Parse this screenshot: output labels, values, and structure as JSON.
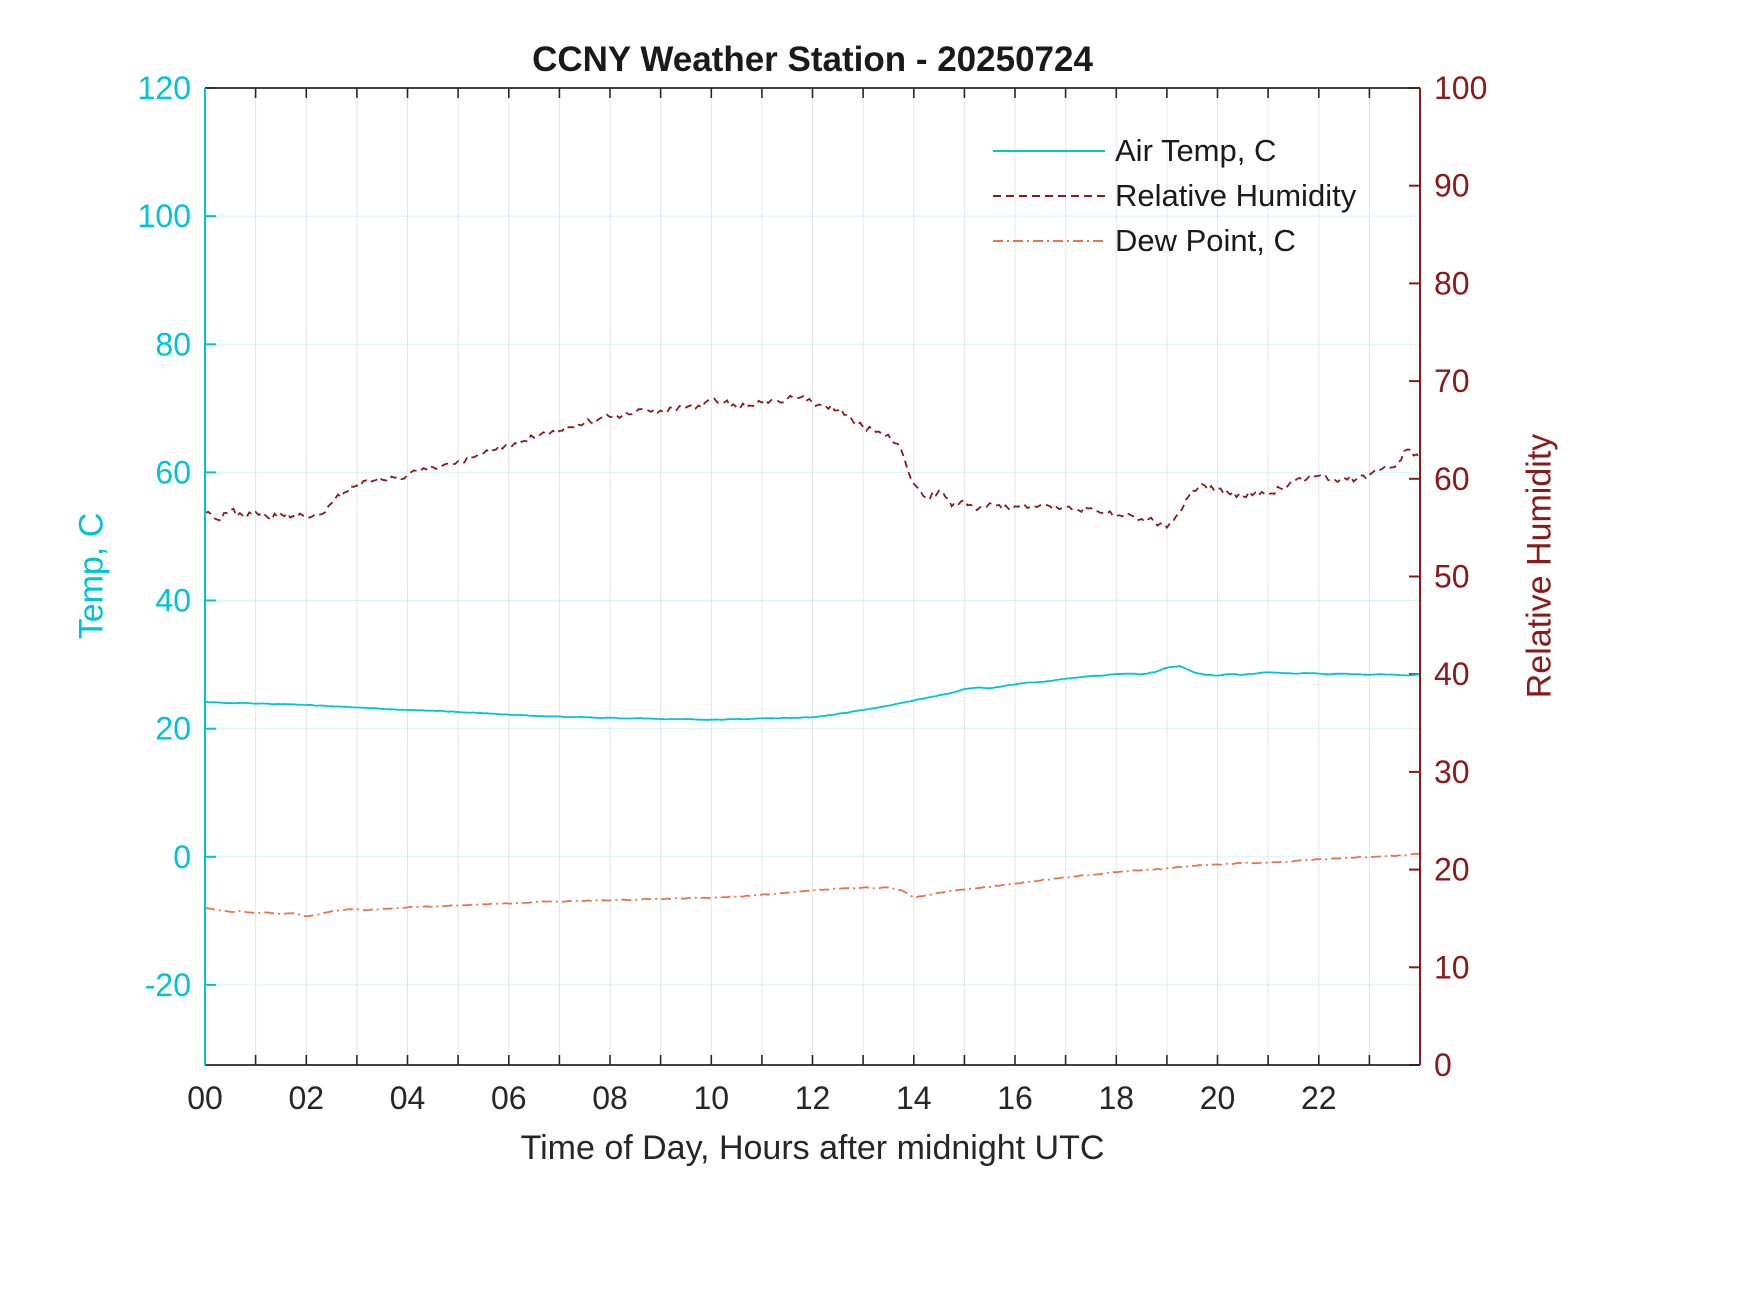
{
  "chart_data": {
    "type": "line",
    "title": "CCNY Weather Station - 20250724",
    "xlabel": "Time of Day, Hours after midnight UTC",
    "x_range": [
      0,
      24
    ],
    "x_tick_values": [
      0,
      2,
      4,
      6,
      8,
      10,
      12,
      14,
      16,
      18,
      20,
      22
    ],
    "x_tick_labels": [
      "00",
      "02",
      "04",
      "06",
      "08",
      "10",
      "12",
      "14",
      "16",
      "18",
      "20",
      "22"
    ],
    "x_grid_step": 1,
    "x_start": 0,
    "x_step": 0.25,
    "grid": true,
    "legend_position": "top-right-inside",
    "left_axis": {
      "label": "Temp, C",
      "color": "#00C4D4",
      "range": [
        -32.5,
        120
      ],
      "ticks": [
        -20,
        0,
        20,
        40,
        60,
        80,
        100,
        120
      ]
    },
    "right_axis": {
      "label": "Relative Humidity",
      "color": "#8A1A1A",
      "range": [
        0,
        100
      ],
      "ticks": [
        0,
        10,
        20,
        30,
        40,
        50,
        60,
        70,
        80,
        90,
        100
      ]
    },
    "series": [
      {
        "name": "Air Temp, C",
        "axis": "left",
        "style": "solid",
        "color": "#00C4D4",
        "values": [
          24.2,
          24.1,
          24.0,
          24.0,
          23.9,
          23.9,
          23.8,
          23.8,
          23.7,
          23.6,
          23.5,
          23.4,
          23.3,
          23.2,
          23.1,
          23.0,
          22.9,
          22.9,
          22.8,
          22.7,
          22.6,
          22.5,
          22.4,
          22.3,
          22.2,
          22.1,
          22.0,
          21.9,
          21.9,
          21.8,
          21.8,
          21.7,
          21.7,
          21.6,
          21.6,
          21.6,
          21.5,
          21.5,
          21.5,
          21.4,
          21.4,
          21.4,
          21.5,
          21.5,
          21.6,
          21.6,
          21.7,
          21.7,
          21.8,
          22.0,
          22.3,
          22.6,
          22.9,
          23.2,
          23.6,
          24.0,
          24.4,
          24.8,
          25.2,
          25.6,
          26.2,
          26.4,
          26.3,
          26.6,
          26.9,
          27.2,
          27.3,
          27.5,
          27.8,
          28.0,
          28.2,
          28.3,
          28.5,
          28.6,
          28.5,
          28.8,
          29.5,
          29.8,
          28.9,
          28.4,
          28.3,
          28.5,
          28.4,
          28.6,
          28.8,
          28.7,
          28.6,
          28.7,
          28.6,
          28.5,
          28.6,
          28.5,
          28.4,
          28.5,
          28.4,
          28.3,
          28.5
        ]
      },
      {
        "name": "Relative Humidity",
        "axis": "right",
        "style": "dashed",
        "color": "#8A1A1A",
        "values": [
          56.5,
          55.8,
          56.8,
          56.2,
          56.6,
          56.0,
          56.4,
          56.2,
          56.0,
          56.3,
          57.5,
          58.6,
          59.3,
          59.6,
          59.9,
          60.1,
          60.4,
          60.8,
          61.2,
          61.5,
          61.8,
          62.2,
          62.6,
          63.0,
          63.5,
          63.8,
          64.2,
          64.5,
          64.9,
          65.3,
          65.7,
          66.0,
          66.3,
          66.5,
          66.8,
          67.0,
          67.0,
          67.2,
          67.3,
          67.5,
          68.0,
          67.8,
          67.3,
          67.5,
          67.8,
          68.0,
          68.2,
          68.3,
          67.8,
          67.5,
          67.0,
          66.3,
          65.3,
          64.8,
          64.5,
          63.0,
          59.5,
          58.0,
          58.8,
          57.2,
          57.8,
          56.8,
          57.5,
          56.9,
          57.2,
          57.0,
          57.3,
          56.9,
          57.1,
          56.8,
          57.0,
          56.5,
          56.2,
          56.4,
          55.9,
          55.6,
          55.0,
          56.5,
          58.8,
          59.3,
          59.0,
          58.4,
          58.2,
          58.6,
          58.4,
          59.0,
          59.6,
          59.9,
          60.3,
          59.8,
          60.1,
          60.0,
          60.4,
          61.0,
          61.2,
          63.0,
          62.0
        ]
      },
      {
        "name": "Dew Point, C",
        "axis": "left",
        "style": "dashdot",
        "color": "#E8744C",
        "values": [
          -8.0,
          -8.3,
          -8.6,
          -8.5,
          -8.8,
          -8.7,
          -8.9,
          -8.8,
          -9.3,
          -9.0,
          -8.5,
          -8.3,
          -8.2,
          -8.3,
          -8.1,
          -8.0,
          -7.9,
          -7.8,
          -7.8,
          -7.7,
          -7.6,
          -7.5,
          -7.4,
          -7.3,
          -7.3,
          -7.2,
          -7.1,
          -7.0,
          -7.0,
          -6.9,
          -6.9,
          -6.8,
          -6.8,
          -6.7,
          -6.7,
          -6.6,
          -6.6,
          -6.5,
          -6.5,
          -6.4,
          -6.4,
          -6.3,
          -6.2,
          -6.1,
          -5.9,
          -5.8,
          -5.6,
          -5.4,
          -5.2,
          -5.1,
          -5.0,
          -4.9,
          -4.8,
          -4.9,
          -4.8,
          -5.2,
          -6.4,
          -6.0,
          -5.6,
          -5.3,
          -5.1,
          -4.9,
          -4.7,
          -4.4,
          -4.2,
          -3.9,
          -3.7,
          -3.4,
          -3.2,
          -3.0,
          -2.8,
          -2.6,
          -2.4,
          -2.2,
          -2.1,
          -2.0,
          -1.8,
          -1.6,
          -1.4,
          -1.3,
          -1.2,
          -1.1,
          -1.0,
          -1.0,
          -0.9,
          -0.8,
          -0.7,
          -0.5,
          -0.4,
          -0.3,
          -0.2,
          -0.1,
          0.0,
          0.1,
          0.1,
          0.3,
          0.5
        ]
      }
    ]
  }
}
